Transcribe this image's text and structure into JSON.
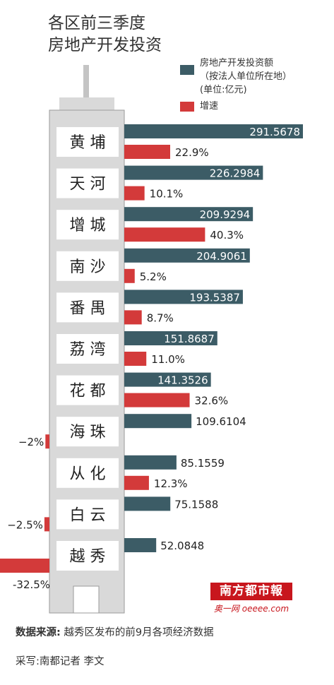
{
  "title": [
    "各区前三季度",
    "房地产开发投资"
  ],
  "legend": {
    "investment": [
      "房地产开发投资额",
      "（按法人单位所在地）",
      "(单位:亿元)"
    ],
    "growth": "增速"
  },
  "colors": {
    "investment": "#3c5c66",
    "growth": "#d33a3a",
    "building": "#d9d9d9",
    "building_line": "#9a9a9a"
  },
  "chart_data": {
    "type": "bar",
    "orientation": "horizontal",
    "categories": [
      "黄 埔",
      "天 河",
      "增 城",
      "南 沙",
      "番 禺",
      "荔 湾",
      "花 都",
      "海 珠",
      "从 化",
      "白 云",
      "越 秀"
    ],
    "investment_labels": [
      "291.5678",
      "226.2984",
      "209.9294",
      "204.9061",
      "193.5387",
      "151.8687",
      "141.3526",
      "109.6104",
      "85.1559",
      "75.1588",
      "52.0848"
    ],
    "growth_labels": [
      "22.9%",
      "10.1%",
      "40.3%",
      "5.2%",
      "8.7%",
      "11.0%",
      "32.6%",
      "−2%",
      "12.3%",
      "−2.5%",
      "-32.5%"
    ],
    "series": [
      {
        "name": "房地产开发投资额（按法人单位所在地）",
        "unit": "亿元",
        "values": [
          291.5678,
          226.2984,
          209.9294,
          204.9061,
          193.5387,
          151.8687,
          141.3526,
          109.6104,
          85.1559,
          75.1588,
          52.0848
        ]
      },
      {
        "name": "增速",
        "unit": "%",
        "values": [
          22.9,
          10.1,
          40.3,
          5.2,
          8.7,
          11.0,
          32.6,
          -2.0,
          12.3,
          -2.5,
          -32.5
        ]
      }
    ]
  },
  "footer": {
    "source_label": "数据来源:",
    "source_text": "越秀区发布的前9月各项经济数据",
    "author": "采写:南都记者  李文"
  },
  "brand": {
    "name": "南方都市報",
    "site": "奥一网 oeeee.com"
  }
}
